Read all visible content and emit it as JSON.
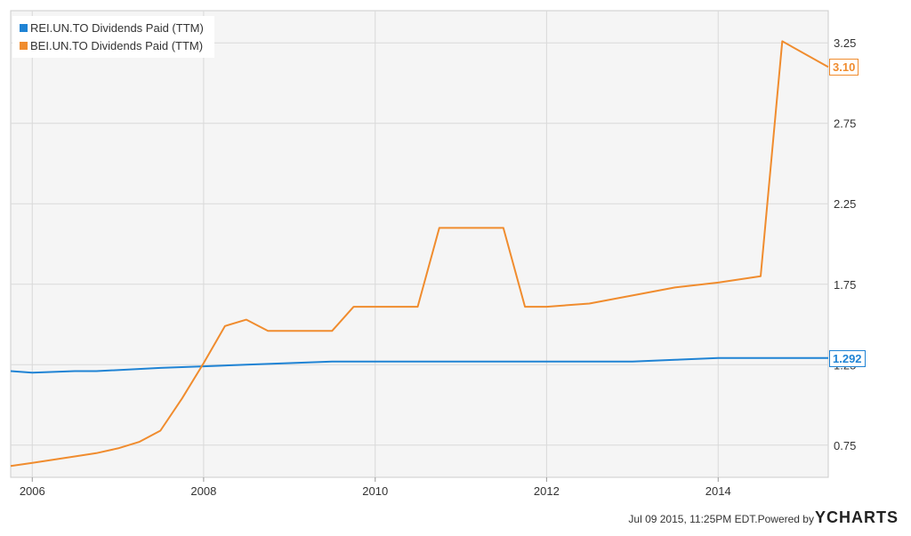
{
  "chart_data": {
    "type": "line",
    "xlim": [
      "2005-10-01",
      "2015-04-15"
    ],
    "ylim": [
      0.55,
      3.45
    ],
    "y_ticks": [
      0.75,
      1.25,
      1.75,
      2.25,
      2.75,
      3.25
    ],
    "y_tick_labels": [
      "0.75",
      "1.25",
      "1.75",
      "2.25",
      "2.75",
      "3.25"
    ],
    "x_ticks": [
      "2006-01-01",
      "2008-01-01",
      "2010-01-01",
      "2012-01-01",
      "2014-01-01"
    ],
    "x_tick_labels": [
      "2006",
      "2008",
      "2010",
      "2012",
      "2014"
    ],
    "grid": true,
    "legend_position": "top-left",
    "series": [
      {
        "name": "REI.UN.TO Dividends Paid (TTM)",
        "color": "#1f83d4",
        "last_value_label": "1.292",
        "points": [
          [
            "2005-10-01",
            1.21
          ],
          [
            "2006-01-01",
            1.2
          ],
          [
            "2006-07-01",
            1.21
          ],
          [
            "2006-10-01",
            1.21
          ],
          [
            "2007-07-01",
            1.23
          ],
          [
            "2008-01-01",
            1.24
          ],
          [
            "2008-07-01",
            1.25
          ],
          [
            "2009-01-01",
            1.26
          ],
          [
            "2009-07-01",
            1.27
          ],
          [
            "2010-01-01",
            1.27
          ],
          [
            "2012-01-01",
            1.27
          ],
          [
            "2013-01-01",
            1.27
          ],
          [
            "2013-07-01",
            1.28
          ],
          [
            "2014-01-01",
            1.292
          ],
          [
            "2015-04-15",
            1.292
          ]
        ]
      },
      {
        "name": "BEI.UN.TO Dividends Paid (TTM)",
        "color": "#f08c2e",
        "last_value_label": "3.10",
        "points": [
          [
            "2005-10-01",
            0.62
          ],
          [
            "2006-01-01",
            0.64
          ],
          [
            "2006-07-01",
            0.68
          ],
          [
            "2006-10-01",
            0.7
          ],
          [
            "2007-01-01",
            0.73
          ],
          [
            "2007-04-01",
            0.77
          ],
          [
            "2007-07-01",
            0.84
          ],
          [
            "2007-10-01",
            1.04
          ],
          [
            "2008-01-01",
            1.26
          ],
          [
            "2008-04-01",
            1.49
          ],
          [
            "2008-07-01",
            1.53
          ],
          [
            "2008-10-01",
            1.46
          ],
          [
            "2009-07-01",
            1.46
          ],
          [
            "2009-10-01",
            1.61
          ],
          [
            "2010-07-01",
            1.61
          ],
          [
            "2010-10-01",
            2.1
          ],
          [
            "2011-07-01",
            2.1
          ],
          [
            "2011-10-01",
            1.61
          ],
          [
            "2012-01-01",
            1.61
          ],
          [
            "2012-07-01",
            1.63
          ],
          [
            "2013-01-01",
            1.68
          ],
          [
            "2013-07-01",
            1.73
          ],
          [
            "2014-01-01",
            1.76
          ],
          [
            "2014-07-01",
            1.8
          ],
          [
            "2014-10-01",
            3.26
          ],
          [
            "2015-04-15",
            3.1
          ]
        ]
      }
    ]
  },
  "footer": {
    "timestamp": "Jul 09 2015, 11:25PM EDT.",
    "powered_by": "Powered by",
    "brand": "YCHARTS"
  },
  "colors": {
    "plot_background": "#f5f5f5",
    "grid": "#d9d9d9",
    "axis_text": "#333333"
  }
}
